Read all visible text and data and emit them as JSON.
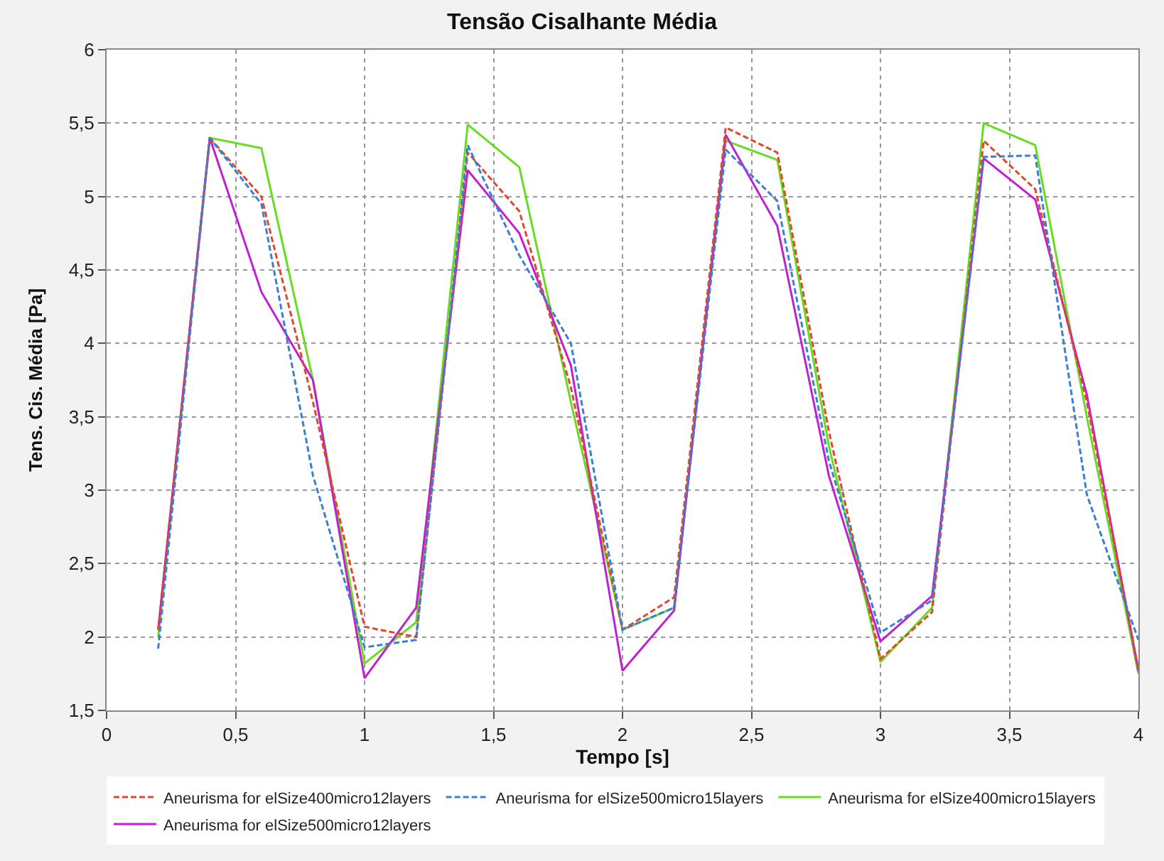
{
  "chart_data": {
    "type": "line",
    "title": "Tensão Cisalhante Média",
    "xlabel": "Tempo [s]",
    "ylabel": "Tens. Cis. Média [Pa]",
    "x": [
      0.2,
      0.4,
      0.6,
      0.8,
      1.0,
      1.2,
      1.4,
      1.6,
      1.8,
      2.0,
      2.2,
      2.4,
      2.6,
      2.8,
      3.0,
      3.2,
      3.4,
      3.6,
      3.8,
      4.0
    ],
    "series": [
      {
        "name": "Aneurisma for elSize400micro12layers",
        "color": "#e0472f",
        "line_style": "dashed",
        "values": [
          2.05,
          5.4,
          5.0,
          3.6,
          2.07,
          2.0,
          5.3,
          4.9,
          3.7,
          2.05,
          2.27,
          5.47,
          5.3,
          3.4,
          1.85,
          2.17,
          5.38,
          5.05,
          3.6,
          1.78
        ]
      },
      {
        "name": "Aneurisma for elSize500micro15layers",
        "color": "#3b7fd4",
        "line_style": "dashed",
        "values": [
          1.92,
          5.4,
          4.95,
          3.1,
          1.93,
          1.98,
          5.35,
          4.6,
          4.0,
          2.05,
          2.2,
          5.32,
          4.97,
          3.2,
          2.03,
          2.25,
          5.27,
          5.28,
          2.97,
          1.98
        ]
      },
      {
        "name": "Aneurisma for elSize400micro15layers",
        "color": "#66dd22",
        "line_style": "solid",
        "values": [
          2.0,
          5.4,
          5.33,
          3.75,
          1.82,
          2.1,
          5.49,
          5.2,
          3.6,
          2.05,
          2.2,
          5.38,
          5.25,
          3.3,
          1.83,
          2.2,
          5.5,
          5.35,
          3.5,
          1.75
        ]
      },
      {
        "name": "Aneurisma for elSize500micro12layers",
        "color": "#c020d0",
        "line_style": "solid",
        "values": [
          2.05,
          5.4,
          4.35,
          3.75,
          1.72,
          2.2,
          5.18,
          4.75,
          3.85,
          1.77,
          2.18,
          5.42,
          4.8,
          3.1,
          1.97,
          2.28,
          5.26,
          4.98,
          3.65,
          1.77
        ]
      }
    ],
    "xlim": [
      0,
      4
    ],
    "ylim": [
      1.5,
      6
    ],
    "xticks": [
      0,
      {
        "value": 0.5,
        "label": "0,5"
      },
      1,
      {
        "value": 1.5,
        "label": "1,5"
      },
      2,
      {
        "value": 2.5,
        "label": "2,5"
      },
      3,
      {
        "value": 3.5,
        "label": "3,5"
      },
      4
    ],
    "yticks": [
      {
        "value": 1.5,
        "label": "1,5"
      },
      2,
      {
        "value": 2.5,
        "label": "2,5"
      },
      3,
      {
        "value": 3.5,
        "label": "3,5"
      },
      4,
      {
        "value": 4.5,
        "label": "4,5"
      },
      5,
      {
        "value": 5.5,
        "label": "5,5"
      },
      6
    ],
    "grid": true,
    "legend": "bottom",
    "marker": "none"
  }
}
